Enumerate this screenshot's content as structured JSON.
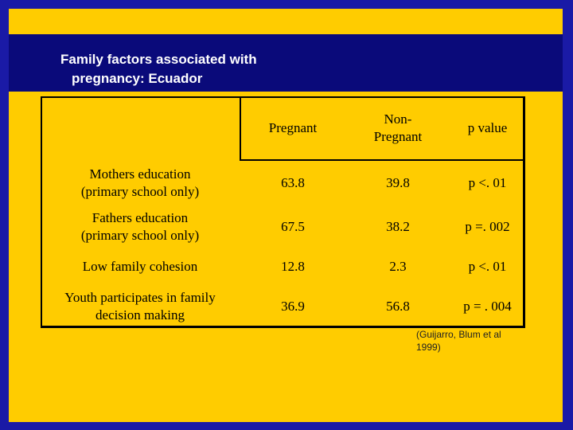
{
  "title": {
    "line1": "Family factors associated with",
    "line2": "pregnancy: Ecuador"
  },
  "table": {
    "headers": [
      "",
      "Pregnant",
      "Non-\nPregnant",
      "p value"
    ],
    "rows": [
      [
        "Mothers education\n(primary school only)",
        "63.8",
        "39.8",
        "p <. 01"
      ],
      [
        "Fathers education\n(primary school only)",
        "67.5",
        "38.2",
        "p =. 002"
      ],
      [
        "Low family cohesion",
        "12.8",
        "2.3",
        "p <. 01"
      ],
      [
        "Youth participates in family\ndecision making",
        "36.9",
        "56.8",
        "p = . 004"
      ]
    ]
  },
  "citation": "(Guijarro, Blum et al\n1999)",
  "colors": {
    "frame": "#1a1aa6",
    "background": "#ffcc00",
    "title_band": "#0a0a7a",
    "title_text": "#ffffff"
  }
}
